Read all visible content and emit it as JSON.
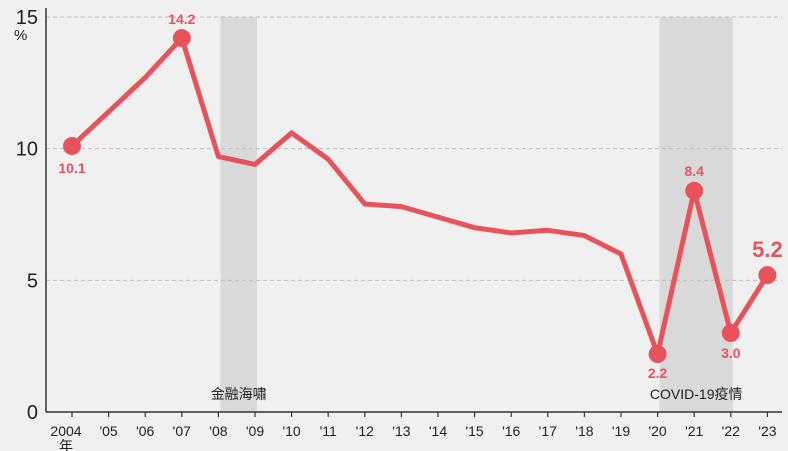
{
  "chart_data": {
    "type": "line",
    "title": "",
    "unit_label": "%",
    "x_tick_labels": [
      "2004",
      "'05",
      "'06",
      "'07",
      "'08",
      "'09",
      "'10",
      "'11",
      "'12",
      "'13",
      "'14",
      "'15",
      "'16",
      "'17",
      "'18",
      "'19",
      "'20",
      "'21",
      "'22",
      "'23"
    ],
    "x_first_suffix": "年",
    "y_ticks": [
      "0",
      "5",
      "10",
      "15"
    ],
    "ylim": [
      0,
      15
    ],
    "grid": true,
    "series": [
      {
        "values": [
          10.1,
          11.4,
          12.7,
          14.2,
          9.7,
          9.4,
          10.6,
          9.6,
          7.9,
          7.8,
          7.4,
          7.0,
          6.8,
          6.9,
          6.7,
          6.0,
          2.2,
          8.4,
          3.0,
          5.2
        ],
        "color": "#e8525b"
      }
    ],
    "data_labels": [
      {
        "index": 0,
        "text": "10.1"
      },
      {
        "index": 3,
        "text": "14.2"
      },
      {
        "index": 16,
        "text": "2.2"
      },
      {
        "index": 17,
        "text": "8.4"
      },
      {
        "index": 18,
        "text": "3.0"
      },
      {
        "index": 19,
        "text": "5.2"
      }
    ],
    "shaded_periods": [
      {
        "from_index": 4,
        "to_index": 5,
        "label": "金融海嘯"
      },
      {
        "from_index": 16,
        "to_index": 18,
        "label": "COVID-19疫情"
      }
    ],
    "colors": {
      "line": "#e8525b",
      "shade": "#d9d9d9",
      "grid": "#bdbdbd",
      "axis": "#333333",
      "background": "#f0f0f0"
    }
  }
}
